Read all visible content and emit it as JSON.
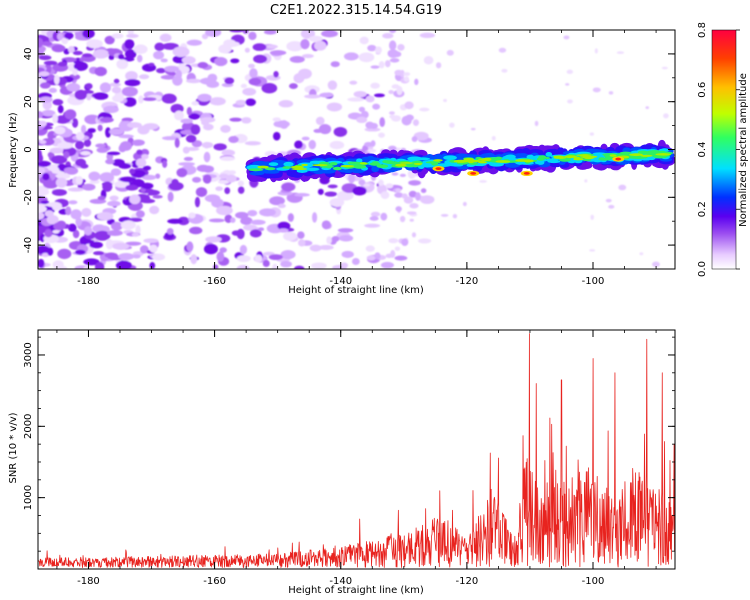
{
  "title": "C2E1.2022.315.14.54.G19",
  "chart_data": [
    {
      "type": "heatmap",
      "xlabel": "Height of straight line (km)",
      "ylabel": "Frequency (Hz)",
      "xlim": [
        -188,
        -87
      ],
      "ylim": [
        -50,
        50
      ],
      "xticks": [
        "-180",
        "-160",
        "-140",
        "-120",
        "-100"
      ],
      "yticks": [
        "40",
        "20",
        "0",
        "-20",
        "-40"
      ],
      "colorbar": {
        "label": "Normalized spectral amplitude",
        "range": [
          0,
          0.8
        ],
        "ticks": [
          "0.0",
          "0.2",
          "0.4",
          "0.6",
          "0.8"
        ],
        "colors": [
          "#ffffff",
          "#e8ccff",
          "#9a4cf0",
          "#5a00f0",
          "#0030ff",
          "#00e0ff",
          "#30ff60",
          "#c0ff00",
          "#ffc000",
          "#ff4000",
          "#ff0040"
        ]
      },
      "features": {
        "signal_track": {
          "x_range": [
            -154,
            -88
          ],
          "center_freq_hz": [
            -8,
            -2
          ],
          "width_hz": 8
        },
        "noise_region": {
          "x_range": [
            -188,
            -140
          ],
          "level": "diffuse"
        }
      }
    },
    {
      "type": "line",
      "xlabel": "Height of straight line (km)",
      "ylabel": "SNR (10 * v/v)",
      "xlim": [
        -188,
        -87
      ],
      "ylim": [
        0,
        3350
      ],
      "xticks": [
        "-180",
        "-160",
        "-140",
        "-120",
        "-100"
      ],
      "yticks": [
        "1000",
        "2000",
        "3000"
      ],
      "color": "#e8231f",
      "envelope": {
        "x": [
          -188,
          -170,
          -150,
          -140,
          -130,
          -124,
          -120,
          -116,
          -112,
          -111,
          -110,
          -108,
          -106,
          -104,
          -102,
          -100,
          -98,
          -96,
          -94,
          -92,
          -90,
          -88
        ],
        "y": [
          120,
          140,
          170,
          260,
          420,
          650,
          350,
          950,
          320,
          1200,
          1500,
          900,
          1300,
          1100,
          1450,
          1200,
          1000,
          900,
          1200,
          1400,
          1050,
          900
        ]
      },
      "peaks": [
        {
          "x": -110.1,
          "y": 3300
        },
        {
          "x": -109,
          "y": 2600
        },
        {
          "x": -105,
          "y": 2650
        },
        {
          "x": -100,
          "y": 2950
        },
        {
          "x": -96.5,
          "y": 2750
        },
        {
          "x": -91.5,
          "y": 3220
        },
        {
          "x": -89,
          "y": 2750
        },
        {
          "x": -119,
          "y": 1100
        },
        {
          "x": -137,
          "y": 700
        }
      ]
    }
  ]
}
